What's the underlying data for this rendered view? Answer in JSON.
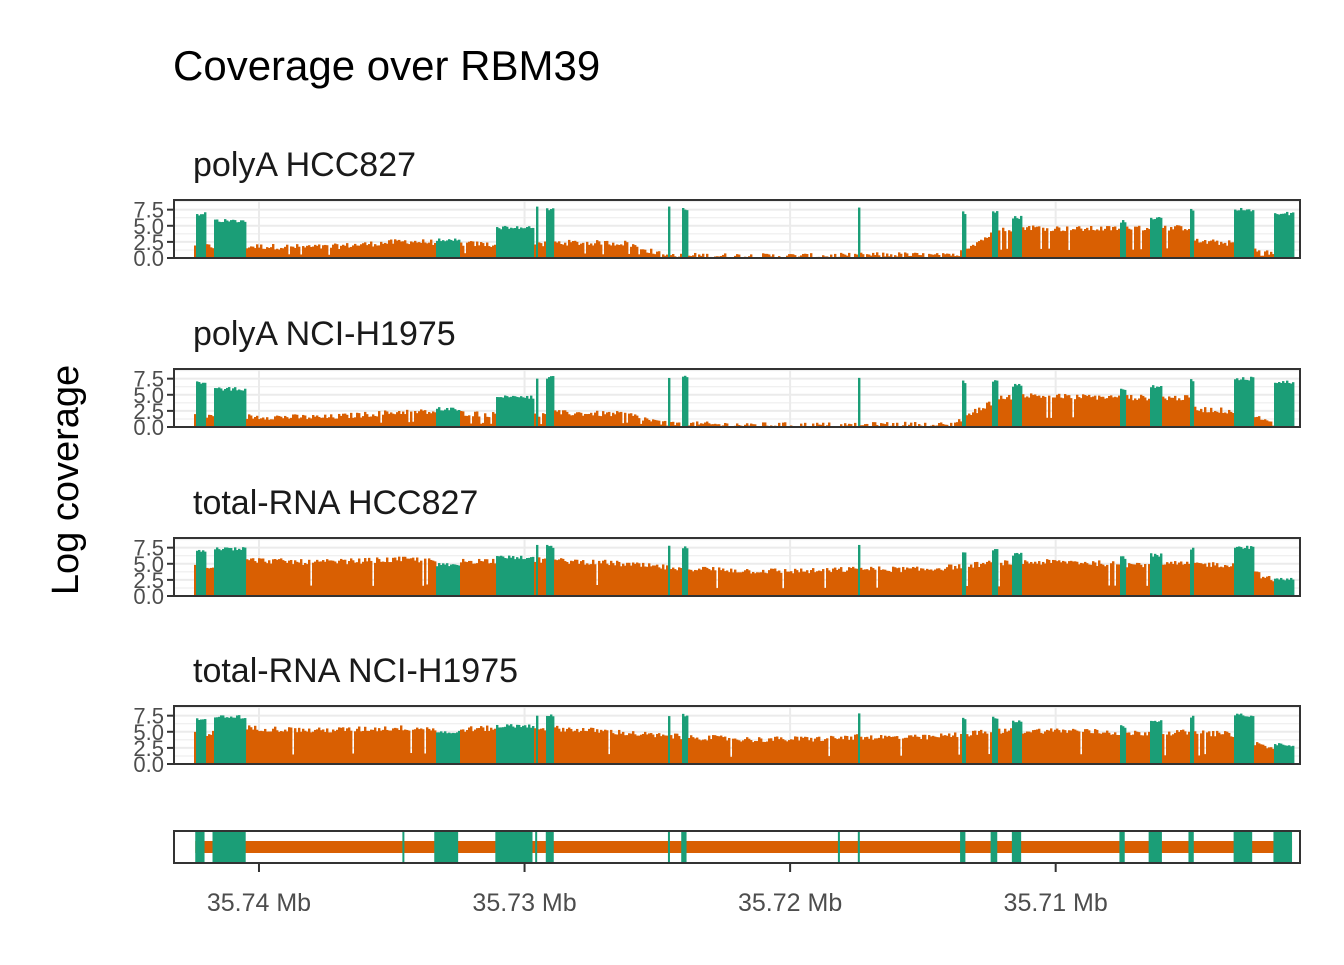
{
  "colors": {
    "exon": "#1b9e77",
    "intron": "#d95f02",
    "grid": "#ebebeb",
    "frame": "#333333"
  },
  "chart_data": {
    "type": "area",
    "title": "Coverage over RBM39",
    "ylabel": "Log coverage",
    "xlabel": "",
    "x_unit": "genomic position (Mb)",
    "x_reversed": true,
    "xlim": [
      35.7432,
      35.7008
    ],
    "ylim": [
      0,
      9.0
    ],
    "grid": true,
    "y_ticks": [
      {
        "value": 0.0,
        "label": "0.0"
      },
      {
        "value": 2.5,
        "label": "2.5"
      },
      {
        "value": 5.0,
        "label": "5.0"
      },
      {
        "value": 7.5,
        "label": "7.5"
      }
    ],
    "x_ticks": [
      {
        "value": 35.74,
        "label": "35.74 Mb"
      },
      {
        "value": 35.73,
        "label": "35.73 Mb"
      },
      {
        "value": 35.72,
        "label": "35.72 Mb"
      },
      {
        "value": 35.71,
        "label": "35.71 Mb"
      }
    ],
    "gene_start": 35.7424,
    "gene_end": 35.7011,
    "exons": [
      [
        35.7424,
        35.74205
      ],
      [
        35.74175,
        35.7405
      ],
      [
        35.7346,
        35.73455
      ],
      [
        35.7334,
        35.7325
      ],
      [
        35.7311,
        35.7297
      ],
      [
        35.7296,
        35.72955
      ],
      [
        35.7292,
        35.7289
      ],
      [
        35.7246,
        35.72455
      ],
      [
        35.7241,
        35.7239
      ],
      [
        35.7182,
        35.72815
      ],
      [
        35.71745,
        35.7174
      ],
      [
        35.7136,
        35.7134
      ],
      [
        35.71245,
        35.7122
      ],
      [
        35.71165,
        35.7113
      ],
      [
        35.7076,
        35.7074
      ],
      [
        35.7065,
        35.706
      ],
      [
        35.705,
        35.7048
      ],
      [
        35.7033,
        35.7026
      ],
      [
        35.7018,
        35.7011
      ]
    ],
    "panels": [
      {
        "name": "polyA HCC827",
        "intron_base": 1.4,
        "intron_profile": [
          [
            35.7405,
            1.8
          ],
          [
            35.7375,
            1.7
          ],
          [
            35.7345,
            2.6
          ],
          [
            35.7325,
            2.3
          ],
          [
            35.7297,
            1.8
          ],
          [
            35.729,
            2.4
          ],
          [
            35.7262,
            2.3
          ],
          [
            35.7248,
            0.4
          ],
          [
            35.7215,
            0.3
          ],
          [
            35.719,
            0.3
          ],
          [
            35.7174,
            0.4
          ],
          [
            35.716,
            0.5
          ],
          [
            35.714,
            0.3
          ],
          [
            35.7122,
            4.2
          ],
          [
            35.7113,
            4.8
          ],
          [
            35.7095,
            4.5
          ],
          [
            35.7074,
            4.6
          ],
          [
            35.705,
            4.7
          ],
          [
            35.7048,
            2.6
          ],
          [
            35.703,
            2.2
          ],
          [
            35.7019,
            0.6
          ],
          [
            35.7011,
            0.3
          ]
        ],
        "exon_levels": [
          7.2,
          6.1,
          5.4,
          3.2,
          5.0,
          8.0,
          8.0,
          8.0,
          8.0,
          8.0,
          8.0,
          7.3,
          7.6,
          6.6,
          5.9,
          6.4,
          7.7,
          7.8,
          7.2
        ]
      },
      {
        "name": "polyA NCI-H1975",
        "intron_base": 1.4,
        "intron_profile": [
          [
            35.7405,
            1.6
          ],
          [
            35.7375,
            1.5
          ],
          [
            35.7345,
            2.4
          ],
          [
            35.7325,
            2.2
          ],
          [
            35.7297,
            1.6
          ],
          [
            35.729,
            2.2
          ],
          [
            35.7262,
            2.0
          ],
          [
            35.7248,
            0.5
          ],
          [
            35.7215,
            0.3
          ],
          [
            35.719,
            0.3
          ],
          [
            35.7174,
            0.3
          ],
          [
            35.716,
            0.4
          ],
          [
            35.714,
            0.3
          ],
          [
            35.7122,
            4.4
          ],
          [
            35.7113,
            4.9
          ],
          [
            35.7095,
            4.7
          ],
          [
            35.7074,
            4.6
          ],
          [
            35.705,
            4.5
          ],
          [
            35.7048,
            2.8
          ],
          [
            35.703,
            2.4
          ],
          [
            35.7019,
            0.5
          ],
          [
            35.7011,
            0.3
          ]
        ],
        "exon_levels": [
          7.2,
          6.2,
          5.3,
          3.1,
          4.9,
          8.0,
          8.0,
          8.0,
          8.0,
          8.0,
          8.0,
          7.4,
          7.6,
          6.7,
          6.0,
          6.5,
          7.7,
          7.8,
          7.2
        ]
      },
      {
        "name": "total-RNA HCC827",
        "intron_base": 3.2,
        "intron_profile": [
          [
            35.742,
            4.6
          ],
          [
            35.7405,
            5.6
          ],
          [
            35.738,
            5.2
          ],
          [
            35.7345,
            5.7
          ],
          [
            35.7325,
            5.4
          ],
          [
            35.7297,
            5.6
          ],
          [
            35.727,
            5.2
          ],
          [
            35.725,
            4.5
          ],
          [
            35.7215,
            3.9
          ],
          [
            35.719,
            3.9
          ],
          [
            35.7174,
            4.2
          ],
          [
            35.715,
            4.1
          ],
          [
            35.7122,
            5.2
          ],
          [
            35.7095,
            5.3
          ],
          [
            35.7074,
            4.9
          ],
          [
            35.705,
            5.0
          ],
          [
            35.7033,
            4.8
          ],
          [
            35.7011,
            1.2
          ]
        ],
        "exon_levels": [
          7.2,
          7.6,
          5.6,
          5.2,
          6.3,
          8.0,
          8.0,
          8.0,
          8.0,
          8.0,
          8.0,
          7.3,
          7.6,
          6.8,
          6.2,
          6.7,
          7.8,
          7.8,
          3.0
        ]
      },
      {
        "name": "total-RNA NCI-H1975",
        "intron_base": 3.2,
        "intron_profile": [
          [
            35.742,
            4.6
          ],
          [
            35.7405,
            5.6
          ],
          [
            35.738,
            5.2
          ],
          [
            35.7345,
            5.6
          ],
          [
            35.7325,
            5.4
          ],
          [
            35.7297,
            5.7
          ],
          [
            35.727,
            5.1
          ],
          [
            35.725,
            4.4
          ],
          [
            35.7215,
            3.8
          ],
          [
            35.719,
            3.9
          ],
          [
            35.7174,
            4.2
          ],
          [
            35.715,
            4.1
          ],
          [
            35.7122,
            5.1
          ],
          [
            35.7095,
            5.2
          ],
          [
            35.7074,
            4.8
          ],
          [
            35.705,
            4.9
          ],
          [
            35.7033,
            4.6
          ],
          [
            35.7011,
            1.0
          ]
        ],
        "exon_levels": [
          7.1,
          7.6,
          5.5,
          5.3,
          6.2,
          8.0,
          8.0,
          8.0,
          8.0,
          8.0,
          8.0,
          7.2,
          7.6,
          6.9,
          6.1,
          6.8,
          7.8,
          7.9,
          3.3
        ]
      }
    ]
  }
}
